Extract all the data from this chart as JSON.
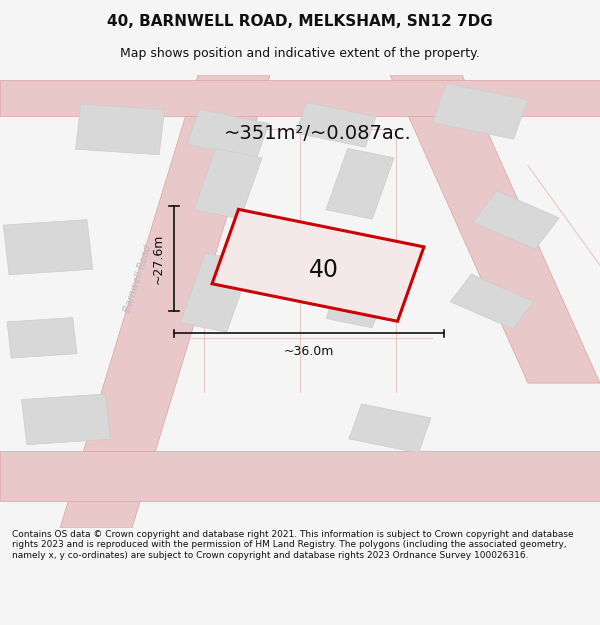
{
  "title": "40, BARNWELL ROAD, MELKSHAM, SN12 7DG",
  "subtitle": "Map shows position and indicative extent of the property.",
  "area_text": "~351m²/~0.087ac.",
  "property_number": "40",
  "dim_width": "~36.0m",
  "dim_height": "~27.6m",
  "road_label": "Barnwell Road",
  "footer": "Contains OS data © Crown copyright and database right 2021. This information is subject to Crown copyright and database rights 2023 and is reproduced with the permission of HM Land Registry. The polygons (including the associated geometry, namely x, y co-ordinates) are subject to Crown copyright and database rights 2023 Ordnance Survey 100026316.",
  "bg_color": "#f5f5f5",
  "map_bg": "#f0eeee",
  "building_color": "#d8d8d8",
  "building_edge": "#cccccc",
  "road_color": "#e8c8c8",
  "road_edge": "#e0a0a0",
  "property_fill": "#f5e8e8",
  "property_edge": "#cc0000",
  "dim_line_color": "#111111",
  "text_color": "#111111",
  "road_text_color": "#bbbbbb"
}
